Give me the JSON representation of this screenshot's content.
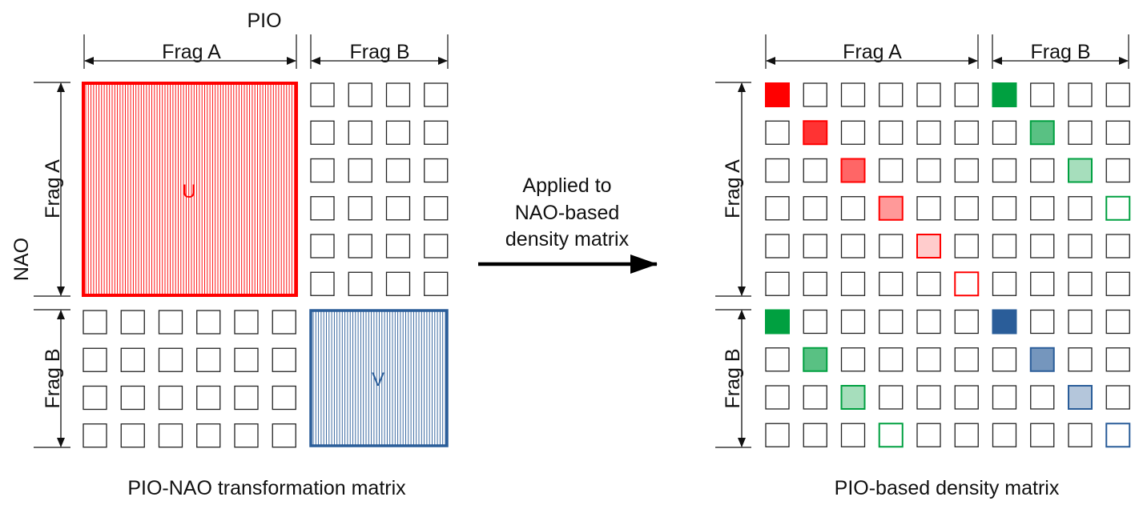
{
  "left_panel": {
    "top_label": "PIO",
    "side_label": "NAO",
    "col_labels": [
      "Frag A",
      "Frag B"
    ],
    "row_labels": [
      "Frag A",
      "Frag B"
    ],
    "block_u_label": "U",
    "block_v_label": "V",
    "caption": "PIO-NAO transformation matrix"
  },
  "arrow": {
    "lines": [
      "Applied to",
      "NAO-based",
      "density matrix"
    ]
  },
  "right_panel": {
    "col_labels": [
      "Frag A",
      "Frag B"
    ],
    "row_labels": [
      "Frag A",
      "Frag B"
    ],
    "caption": "PIO-based density matrix"
  },
  "colors": {
    "red": "#ff0000",
    "green": "#00a040",
    "blue": "#2a5d99",
    "stroke": "#222222"
  },
  "density_cells": [
    {
      "row": 0,
      "col": 0,
      "color": "red",
      "level": 1.0
    },
    {
      "row": 1,
      "col": 1,
      "color": "red",
      "level": 0.8
    },
    {
      "row": 2,
      "col": 2,
      "color": "red",
      "level": 0.6
    },
    {
      "row": 3,
      "col": 3,
      "color": "red",
      "level": 0.4
    },
    {
      "row": 4,
      "col": 4,
      "color": "red",
      "level": 0.2
    },
    {
      "row": 5,
      "col": 5,
      "color": "red",
      "level": 0.0
    },
    {
      "row": 0,
      "col": 6,
      "color": "green",
      "level": 1.0
    },
    {
      "row": 1,
      "col": 7,
      "color": "green",
      "level": 0.65
    },
    {
      "row": 2,
      "col": 8,
      "color": "green",
      "level": 0.35
    },
    {
      "row": 3,
      "col": 9,
      "color": "green",
      "level": 0.0
    },
    {
      "row": 6,
      "col": 0,
      "color": "green",
      "level": 1.0
    },
    {
      "row": 7,
      "col": 1,
      "color": "green",
      "level": 0.65
    },
    {
      "row": 8,
      "col": 2,
      "color": "green",
      "level": 0.35
    },
    {
      "row": 9,
      "col": 3,
      "color": "green",
      "level": 0.0
    },
    {
      "row": 6,
      "col": 6,
      "color": "blue",
      "level": 1.0
    },
    {
      "row": 7,
      "col": 7,
      "color": "blue",
      "level": 0.65
    },
    {
      "row": 8,
      "col": 8,
      "color": "blue",
      "level": 0.35
    },
    {
      "row": 9,
      "col": 9,
      "color": "blue",
      "level": 0.0
    }
  ]
}
